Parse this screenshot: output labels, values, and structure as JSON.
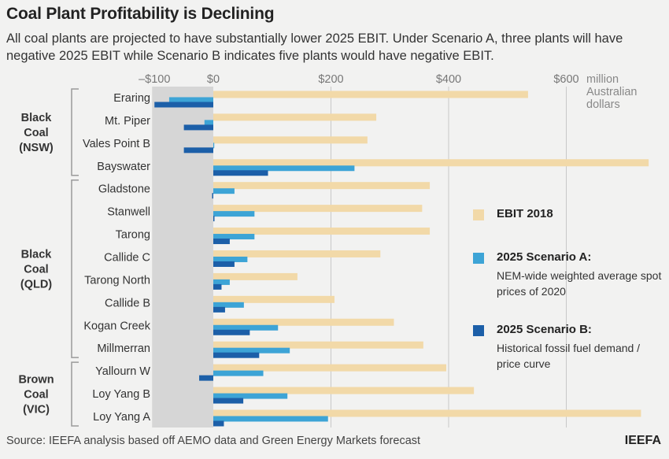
{
  "title": "Coal Plant Profitability is Declining",
  "subtitle": "All coal plants are projected to have substantially lower 2025 EBIT. Under Scenario A, three plants will have negative 2025 EBIT while Scenario B indicates five plants would have negative EBIT.",
  "source": "Source:  IEEFA analysis based off AEMO data and Green Energy Markets forecast",
  "brand": "IEEFA",
  "colors": {
    "ebit_2018": "#f2d9a8",
    "scenario_a": "#3da4d6",
    "scenario_b": "#1c5fa8",
    "negative_zone": "#d6d6d6",
    "grid": "#c8c8c8"
  },
  "legend": [
    {
      "title": "EBIT 2018",
      "desc": ""
    },
    {
      "title": "2025 Scenario A:",
      "desc": "NEM-wide weighted average spot prices of 2020"
    },
    {
      "title": "2025 Scenario B:",
      "desc": "Historical fossil fuel demand / price curve"
    }
  ],
  "chart_data": {
    "type": "bar",
    "orientation": "horizontal",
    "xlim": [
      -100,
      740
    ],
    "xticks": [
      "–$100",
      "$0",
      "$200",
      "$400",
      "$600"
    ],
    "xtick_values": [
      -100,
      0,
      200,
      400,
      600
    ],
    "xunit": "million Australian dollars",
    "grid": true,
    "legend_position": "right",
    "groups": [
      {
        "label": "Black Coal (NSW)",
        "start": 0,
        "end": 3
      },
      {
        "label": "Black Coal (QLD)",
        "start": 4,
        "end": 11
      },
      {
        "label": "Brown Coal (VIC)",
        "start": 12,
        "end": 14
      }
    ],
    "categories": [
      "Eraring",
      "Mt. Piper",
      "Vales Point B",
      "Bayswater",
      "Gladstone",
      "Stanwell",
      "Tarong",
      "Callide C",
      "Tarong North",
      "Callide B",
      "Kogan Creek",
      "Millmerran",
      "Yallourn W",
      "Loy Yang B",
      "Loy Yang A"
    ],
    "series": [
      {
        "name": "EBIT 2018",
        "values": [
          535,
          277,
          262,
          740,
          368,
          355,
          368,
          284,
          143,
          206,
          307,
          357,
          396,
          443,
          727
        ]
      },
      {
        "name": "2025 Scenario A",
        "values": [
          -75,
          -15,
          0,
          240,
          36,
          70,
          70,
          58,
          28,
          52,
          110,
          130,
          85,
          126,
          195
        ]
      },
      {
        "name": "2025 Scenario B",
        "values": [
          -100,
          -50,
          -50,
          93,
          -2,
          2,
          28,
          36,
          14,
          20,
          62,
          78,
          -24,
          51,
          18
        ]
      }
    ]
  }
}
